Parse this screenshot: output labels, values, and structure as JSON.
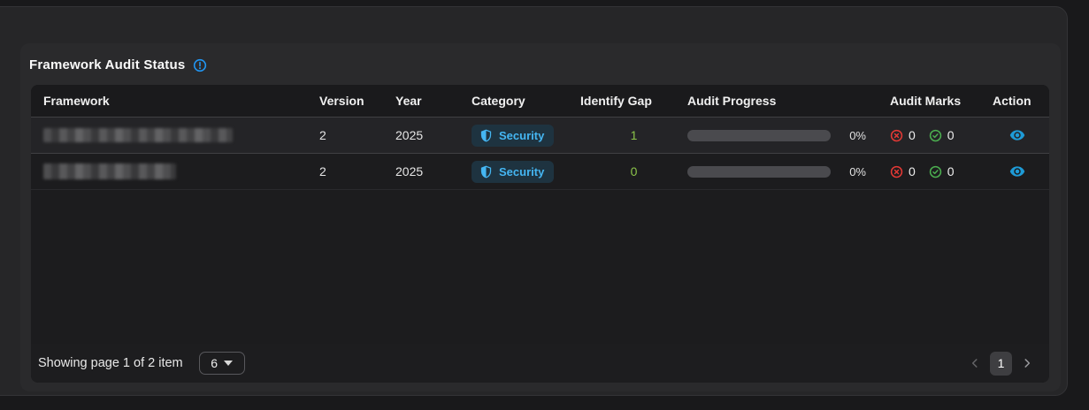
{
  "card": {
    "title": "Framework Audit Status"
  },
  "colors": {
    "accent_blue": "#2196f3",
    "badge_text_blue": "#45b6f2",
    "gap_green": "#8bc34a",
    "mark_red": "#e53935",
    "mark_green": "#4caf50",
    "eye_blue": "#1e9bd7"
  },
  "table": {
    "headers": {
      "framework": "Framework",
      "version": "Version",
      "year": "Year",
      "category": "Category",
      "identify_gap": "Identify Gap",
      "audit_progress": "Audit Progress",
      "audit_marks": "Audit Marks",
      "action": "Action"
    },
    "rows": [
      {
        "framework_redacted": true,
        "version": "2",
        "year": "2025",
        "category": "Security",
        "identify_gap": "1",
        "progress_percent": 0,
        "progress_label": "0%",
        "marks_failed": "0",
        "marks_passed": "0"
      },
      {
        "framework_redacted": true,
        "version": "2",
        "year": "2025",
        "category": "Security",
        "identify_gap": "0",
        "progress_percent": 0,
        "progress_label": "0%",
        "marks_failed": "0",
        "marks_passed": "0"
      }
    ]
  },
  "footer": {
    "showing_text": "Showing page 1 of 2 item",
    "page_size": "6",
    "current_page": "1"
  }
}
